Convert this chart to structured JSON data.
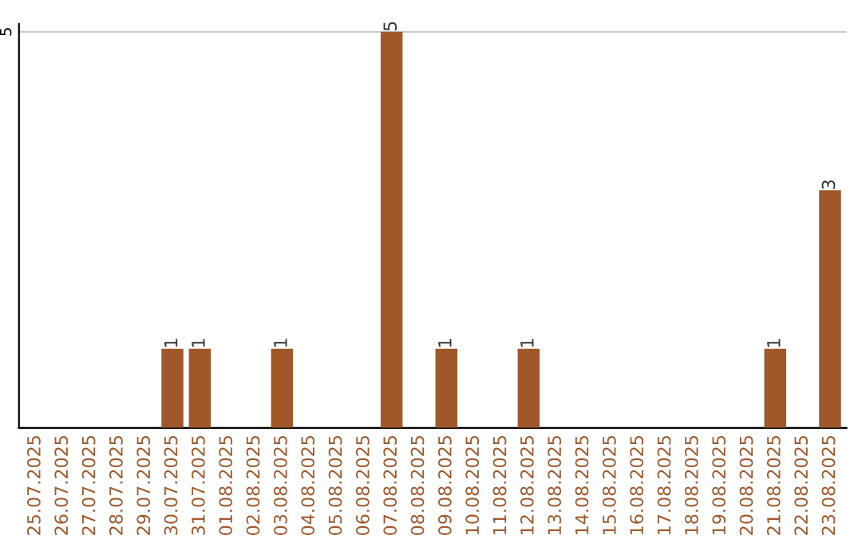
{
  "chart_data": {
    "type": "bar",
    "categories": [
      "25.07.2025",
      "26.07.2025",
      "27.07.2025",
      "28.07.2025",
      "29.07.2025",
      "30.07.2025",
      "31.07.2025",
      "01.08.2025",
      "02.08.2025",
      "03.08.2025",
      "04.08.2025",
      "05.08.2025",
      "06.08.2025",
      "07.08.2025",
      "08.08.2025",
      "09.08.2025",
      "10.08.2025",
      "11.08.2025",
      "12.08.2025",
      "13.08.2025",
      "14.08.2025",
      "15.08.2025",
      "16.08.2025",
      "17.08.2025",
      "18.08.2025",
      "19.08.2025",
      "20.08.2025",
      "21.08.2025",
      "22.08.2025",
      "23.08.2025"
    ],
    "values": [
      0,
      0,
      0,
      0,
      0,
      1,
      1,
      0,
      0,
      1,
      0,
      0,
      0,
      5,
      0,
      1,
      0,
      0,
      1,
      0,
      0,
      0,
      0,
      0,
      0,
      0,
      0,
      1,
      0,
      3
    ],
    "value_labels": [
      null,
      null,
      null,
      null,
      null,
      "1",
      "1",
      null,
      null,
      "1",
      null,
      null,
      null,
      "5",
      null,
      "1",
      null,
      null,
      "1",
      null,
      null,
      null,
      null,
      null,
      null,
      null,
      null,
      "1",
      null,
      "3"
    ],
    "color": "#a0582a",
    "ylim": [
      0,
      5.1
    ],
    "yticks": [
      5
    ],
    "grid": "y"
  }
}
